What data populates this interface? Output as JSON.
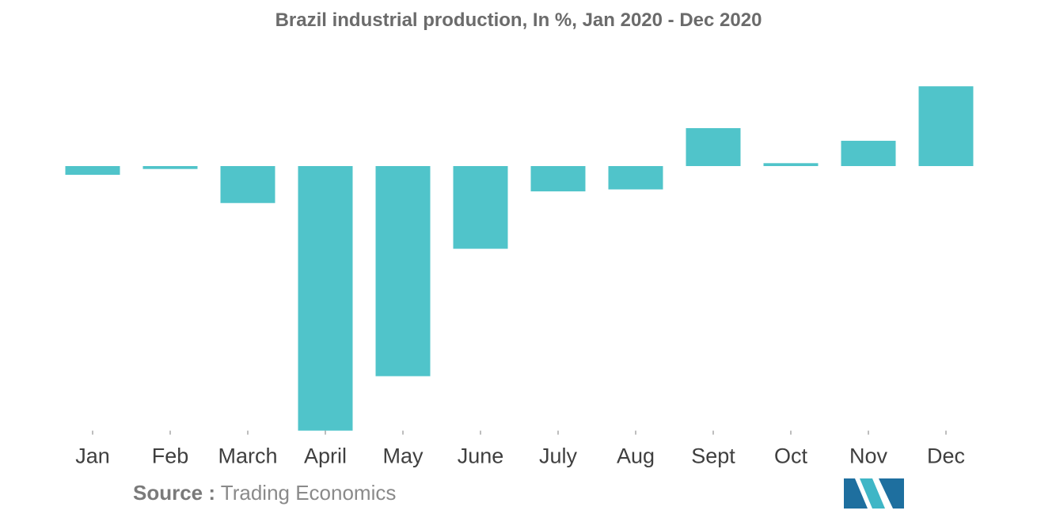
{
  "source": {
    "label": "Source :",
    "value": "Trading Economics"
  },
  "colors": {
    "bar": "#50c4ca",
    "tick": "#bdbdbd",
    "logo_dark": "#1e6f9f",
    "logo_light": "#3fb6c6"
  },
  "chart_data": {
    "type": "bar",
    "title": "Brazil industrial production, In %, Jan 2020 - Dec 2020",
    "xlabel": "",
    "ylabel": "",
    "categories": [
      "Jan",
      "Feb",
      "March",
      "April",
      "May",
      "June",
      "July",
      "Aug",
      "Sept",
      "Oct",
      "Nov",
      "Dec"
    ],
    "values": [
      -0.9,
      -0.3,
      -3.8,
      -27.2,
      -21.6,
      -8.5,
      -2.6,
      -2.4,
      3.9,
      0.3,
      2.6,
      8.2
    ],
    "ylim": [
      -27.2,
      8.2
    ],
    "grid": false,
    "legend": "none"
  }
}
